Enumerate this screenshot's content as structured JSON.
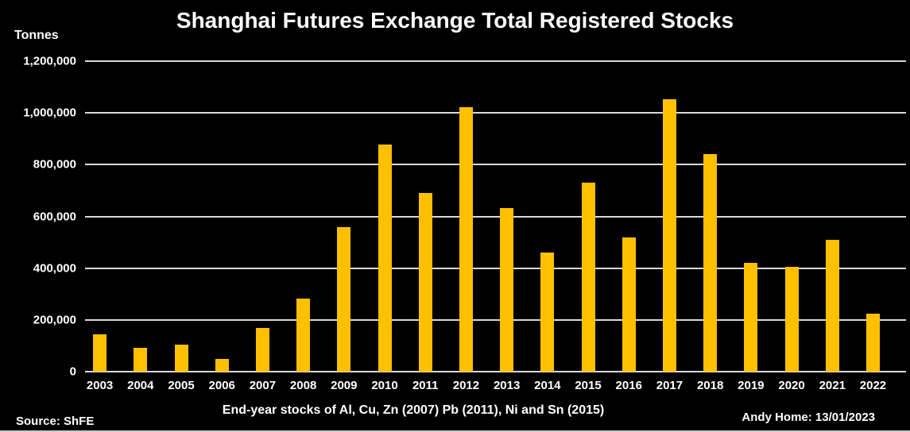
{
  "header": {
    "title": "Shanghai Futures Exchange Total Registered Stocks",
    "unit_label": "Tonnes"
  },
  "footer": {
    "caption": "End-year stocks of Al, Cu, Zn (2007) Pb (2011), Ni and Sn (2015)",
    "source": "Source: ShFE",
    "credit": "Andy Home: 13/01/2023"
  },
  "colors": {
    "background": "#000000",
    "bar": "#FFC000",
    "gridline": "#D9D9D9",
    "text": "#FFFFFF",
    "bottom_border": "#C9C9C9"
  },
  "chart_data": {
    "type": "bar",
    "title": "Shanghai Futures Exchange Total Registered Stocks",
    "ylabel": "Tonnes",
    "xlabel": "",
    "categories": [
      "2003",
      "2004",
      "2005",
      "2006",
      "2007",
      "2008",
      "2009",
      "2010",
      "2011",
      "2012",
      "2013",
      "2014",
      "2015",
      "2016",
      "2017",
      "2018",
      "2019",
      "2020",
      "2021",
      "2022"
    ],
    "values": [
      145000,
      92000,
      104000,
      48000,
      168000,
      281000,
      558000,
      879000,
      691000,
      1022000,
      631000,
      459000,
      732000,
      520000,
      1054000,
      840000,
      420000,
      404000,
      509000,
      225000
    ],
    "ylim": [
      0,
      1200000
    ],
    "y_ticks_top_to_bottom": [
      "1,200,000",
      "1,000,000",
      "800,000",
      "600,000",
      "400,000",
      "200,000",
      "0"
    ],
    "grid": "horizontal-only",
    "legend_position": "none",
    "background": "black",
    "bar_color": "#FFC000"
  }
}
